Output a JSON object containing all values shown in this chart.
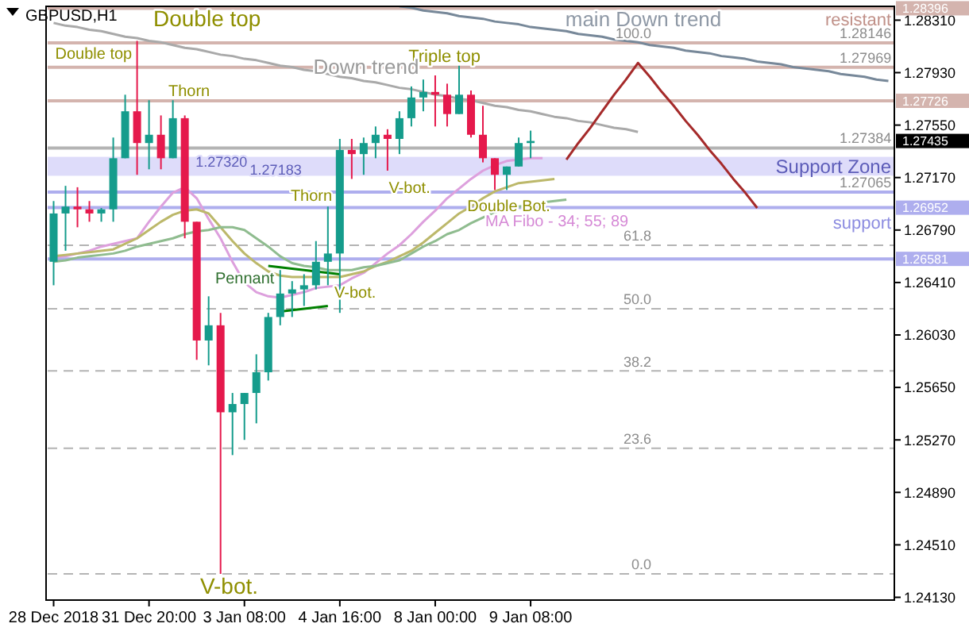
{
  "chart_data": {
    "type": "candlestick",
    "title": "GBPUSD,H1",
    "categories": [
      "28 Dec 2018",
      null,
      null,
      null,
      null,
      null,
      null,
      null,
      "31 Dec 20:00",
      null,
      null,
      null,
      null,
      null,
      null,
      null,
      "3 Jan 08:00",
      null,
      null,
      null,
      null,
      null,
      null,
      null,
      "4 Jan 16:00",
      null,
      null,
      null,
      null,
      null,
      null,
      null,
      "8 Jan 00:00",
      null,
      null,
      null,
      null,
      null,
      null,
      null,
      "9 Jan 08:00",
      null,
      null,
      null,
      null,
      null,
      null,
      null,
      null,
      null,
      null,
      null,
      null,
      null,
      null,
      null,
      null,
      null,
      null,
      null,
      null,
      null,
      null,
      null,
      null,
      null,
      null,
      null,
      null,
      null,
      null
    ],
    "ohlc": [
      [
        1.2656,
        1.27,
        1.2639,
        1.2691
      ],
      [
        1.2691,
        1.2711,
        1.2664,
        1.2696
      ],
      [
        1.2696,
        1.271,
        1.2681,
        1.2694
      ],
      [
        1.2694,
        1.27,
        1.2685,
        1.2691
      ],
      [
        1.2691,
        1.2695,
        1.2685,
        1.2694
      ],
      [
        1.2694,
        1.2746,
        1.2685,
        1.2731
      ],
      [
        1.2731,
        1.2777,
        1.2731,
        1.2765
      ],
      [
        1.2765,
        1.2816,
        1.2719,
        1.2742
      ],
      [
        1.2742,
        1.2773,
        1.2723,
        1.2748
      ],
      [
        1.2748,
        1.2762,
        1.2723,
        1.2731
      ],
      [
        1.2731,
        1.2773,
        1.2731,
        1.276
      ],
      [
        1.276,
        1.2762,
        1.2673,
        1.2685
      ],
      [
        1.2685,
        1.2685,
        1.2585,
        1.2599
      ],
      [
        1.2599,
        1.2631,
        1.2581,
        1.261
      ],
      [
        1.261,
        1.2619,
        1.243,
        1.2547
      ],
      [
        1.2547,
        1.2561,
        1.2516,
        1.2553
      ],
      [
        1.2553,
        1.2561,
        1.2527,
        1.2561
      ],
      [
        1.2561,
        1.2589,
        1.2539,
        1.2576
      ],
      [
        1.2576,
        1.2619,
        1.257,
        1.2616
      ],
      [
        1.2616,
        1.265,
        1.261,
        1.2633
      ],
      [
        1.2633,
        1.2642,
        1.2616,
        1.2636
      ],
      [
        1.2636,
        1.2647,
        1.2624,
        1.2639
      ],
      [
        1.2639,
        1.2671,
        1.2636,
        1.2656
      ],
      [
        1.2656,
        1.2696,
        1.2639,
        1.2662
      ],
      [
        1.2662,
        1.2745,
        1.2619,
        1.2737
      ],
      [
        1.2737,
        1.2745,
        1.2716,
        1.2734
      ],
      [
        1.2734,
        1.2746,
        1.2719,
        1.2742
      ],
      [
        1.2742,
        1.2754,
        1.2731,
        1.2748
      ],
      [
        1.2748,
        1.2752,
        1.2722,
        1.2745
      ],
      [
        1.2745,
        1.2765,
        1.2734,
        1.276
      ],
      [
        1.276,
        1.2783,
        1.2754,
        1.2775
      ],
      [
        1.2775,
        1.2788,
        1.2765,
        1.2779
      ],
      [
        1.2779,
        1.2791,
        1.2754,
        1.2777
      ],
      [
        1.2777,
        1.2785,
        1.2754,
        1.2763
      ],
      [
        1.2763,
        1.2798,
        1.2763,
        1.2777
      ],
      [
        1.2777,
        1.278,
        1.2746,
        1.2748
      ],
      [
        1.2748,
        1.2769,
        1.2728,
        1.2731
      ],
      [
        1.2731,
        1.2731,
        1.2708,
        1.2719
      ],
      [
        1.2719,
        1.2725,
        1.2708,
        1.2725
      ],
      [
        1.2725,
        1.2746,
        1.2725,
        1.2742
      ],
      [
        1.2742,
        1.2751,
        1.2731,
        1.27435
      ],
      null,
      null,
      null,
      null,
      null,
      null,
      null,
      null,
      null,
      null,
      null,
      null,
      null,
      null,
      null,
      null,
      null,
      null,
      null,
      null,
      null,
      null,
      null,
      null,
      null,
      null,
      null,
      null,
      null,
      null
    ],
    "colors": [
      "#159c8c",
      "#159c8c",
      "#e5194c",
      "#e5194c",
      "#159c8c",
      "#159c8c",
      "#159c8c",
      "#e5194c",
      "#159c8c",
      "#e5194c",
      "#159c8c",
      "#e5194c",
      "#e5194c",
      "#159c8c",
      "#e5194c",
      "#159c8c",
      "#159c8c",
      "#159c8c",
      "#159c8c",
      "#159c8c",
      "#159c8c",
      "#159c8c",
      "#159c8c",
      "#159c8c",
      "#159c8c",
      "#e5194c",
      "#159c8c",
      "#159c8c",
      "#e5194c",
      "#159c8c",
      "#159c8c",
      "#159c8c",
      "#e5194c",
      "#e5194c",
      "#159c8c",
      "#e5194c",
      "#e5194c",
      "#e5194c",
      "#159c8c",
      "#159c8c",
      "#159c8c",
      null,
      null,
      null,
      null,
      null,
      null,
      null,
      null,
      null,
      null,
      null,
      null,
      null,
      null,
      null,
      null,
      null,
      null,
      null,
      null,
      null,
      null,
      null,
      null,
      null,
      null,
      null,
      null,
      null,
      null
    ],
    "series": [
      {
        "type": "line",
        "color": "#dda0dd",
        "values": [
          1.2659,
          1.266,
          1.2662,
          1.2664,
          1.2667,
          1.2669,
          1.2671,
          1.2673,
          1.2685,
          1.2696,
          1.2706,
          1.271,
          1.2702,
          1.2687,
          1.2673,
          1.2656,
          1.2641,
          1.2634,
          1.2631,
          1.263,
          1.2632,
          1.2634,
          1.2637,
          1.2638,
          1.2639,
          1.2644,
          1.2648,
          1.2655,
          1.2662,
          1.2668,
          1.2676,
          1.2685,
          1.2693,
          1.2702,
          1.2709,
          1.2716,
          1.2722,
          1.2726,
          1.2729,
          1.273,
          1.2731,
          1.2731,
          null,
          null,
          null,
          null,
          null,
          null,
          null,
          null,
          null,
          null,
          null,
          null,
          null,
          null,
          null,
          null,
          null,
          null,
          null,
          null,
          null,
          null,
          null,
          null,
          null,
          null,
          null,
          null,
          null
        ]
      },
      {
        "type": "line",
        "color": "#bcb86a",
        "values": [
          1.266,
          1.2661,
          1.2662,
          1.2663,
          1.2664,
          1.2665,
          1.2669,
          1.2673,
          1.2679,
          1.2685,
          1.269,
          1.2693,
          1.2694,
          1.2691,
          1.2681,
          1.2671,
          1.2662,
          1.2655,
          1.2649,
          1.2646,
          1.2645,
          1.2645,
          1.2645,
          1.2645,
          1.2645,
          1.2647,
          1.2649,
          1.2653,
          1.2656,
          1.266,
          1.2664,
          1.267,
          1.2677,
          1.2684,
          1.2691,
          1.2696,
          1.2702,
          1.2707,
          1.271,
          1.2713,
          1.2714,
          1.2715,
          1.2716,
          null,
          null,
          null,
          null,
          null,
          null,
          null,
          null,
          null,
          null,
          null,
          null,
          null,
          null,
          null,
          null,
          null,
          null,
          null,
          null,
          null,
          null,
          null,
          null,
          null,
          null,
          null,
          null
        ]
      },
      {
        "type": "line",
        "color": "#8fbc8f",
        "values": [
          1.2656,
          1.2657,
          1.2659,
          1.266,
          1.2661,
          1.2662,
          1.2664,
          1.2667,
          1.2669,
          1.2671,
          1.2673,
          1.2676,
          1.2678,
          1.2679,
          1.2681,
          1.2681,
          1.2679,
          1.2673,
          1.2667,
          1.266,
          1.2655,
          1.2653,
          1.2652,
          1.265,
          1.265,
          1.265,
          1.2652,
          1.2653,
          1.2655,
          1.2657,
          1.2662,
          1.2667,
          1.2671,
          1.2676,
          1.2679,
          1.2684,
          1.2688,
          1.2692,
          1.2694,
          1.2696,
          1.2697,
          1.2699,
          1.27,
          1.2701,
          null,
          null,
          null,
          null,
          null,
          null,
          null,
          null,
          null,
          null,
          null,
          null,
          null,
          null,
          null,
          null,
          null,
          null,
          null,
          null,
          null,
          null,
          null,
          null,
          null,
          null,
          null
        ]
      },
      {
        "type": "line",
        "color": "#a9a9a9",
        "values": [
          1.2829,
          1.2827,
          1.2826,
          1.2824,
          1.2823,
          1.2821,
          1.2819,
          1.2818,
          1.2816,
          1.2815,
          1.2813,
          1.2811,
          1.281,
          1.2808,
          1.2806,
          1.2805,
          1.2803,
          1.2802,
          1.28,
          1.2798,
          1.2797,
          1.2795,
          1.2794,
          1.2792,
          1.279,
          1.2789,
          1.2787,
          1.2786,
          1.2784,
          1.2782,
          1.2781,
          1.2779,
          1.2777,
          1.2776,
          1.2774,
          1.2773,
          1.2771,
          1.2769,
          1.2768,
          1.2766,
          1.2765,
          1.2763,
          1.2761,
          1.276,
          1.2758,
          1.2757,
          1.2755,
          1.2753,
          1.2752,
          1.275,
          null,
          null,
          null,
          null,
          null,
          null,
          null,
          null,
          null,
          null,
          null,
          null,
          null,
          null,
          null,
          null,
          null,
          null,
          null,
          null,
          null
        ]
      },
      {
        "type": "line",
        "color": "#778899",
        "values": [
          null,
          null,
          null,
          null,
          null,
          null,
          null,
          null,
          null,
          null,
          null,
          null,
          null,
          null,
          null,
          null,
          null,
          null,
          null,
          null,
          null,
          null,
          null,
          null,
          null,
          null,
          null,
          null,
          null,
          1.2841,
          1.284,
          1.2838,
          1.2837,
          1.2836,
          1.2834,
          1.2833,
          1.2832,
          1.283,
          1.2829,
          1.2828,
          1.2826,
          1.2825,
          1.2824,
          1.2823,
          1.2821,
          1.282,
          1.2819,
          1.2817,
          1.2816,
          1.2815,
          1.2813,
          1.2812,
          1.2811,
          1.2809,
          1.2808,
          1.2807,
          1.2805,
          1.2804,
          1.2803,
          1.2801,
          1.28,
          1.2799,
          1.2797,
          1.2796,
          1.2795,
          1.2794,
          1.2792,
          1.2791,
          1.279,
          1.2788,
          1.2787
        ]
      },
      {
        "type": "line",
        "color": "#a52a2a",
        "values": [
          null,
          null,
          null,
          null,
          null,
          null,
          null,
          null,
          null,
          null,
          null,
          null,
          null,
          null,
          null,
          null,
          null,
          null,
          null,
          null,
          null,
          null,
          null,
          null,
          null,
          null,
          null,
          null,
          null,
          null,
          null,
          null,
          null,
          null,
          null,
          null,
          null,
          null,
          null,
          null,
          null,
          null,
          null,
          1.273,
          1.2742,
          1.2753,
          1.2765,
          1.2777,
          1.2788,
          1.28,
          1.279,
          1.2779,
          1.2769,
          1.2758,
          1.2748,
          1.2737,
          1.2727,
          1.2716,
          1.2706,
          1.2695,
          null,
          null,
          null,
          null,
          null,
          null,
          null,
          null,
          null,
          null,
          null
        ]
      },
      {
        "type": "line",
        "color": "#008000",
        "values": [
          null,
          null,
          null,
          null,
          null,
          null,
          null,
          null,
          null,
          null,
          null,
          null,
          null,
          null,
          null,
          null,
          null,
          null,
          1.2653,
          1.2652,
          1.2651,
          1.265,
          1.2649,
          1.2648,
          1.2647,
          null,
          null,
          null,
          null,
          null,
          null,
          null,
          null,
          null,
          null,
          null,
          null,
          null,
          null,
          null,
          null,
          null,
          null,
          null,
          null,
          null,
          null,
          null,
          null,
          null,
          null,
          null,
          null,
          null,
          null,
          null,
          null,
          null,
          null,
          null,
          null,
          null,
          null,
          null,
          null,
          null,
          null,
          null,
          null,
          null,
          null
        ]
      },
      {
        "type": "line",
        "color": "#008000",
        "values": [
          null,
          null,
          null,
          null,
          null,
          null,
          null,
          null,
          null,
          null,
          null,
          null,
          null,
          null,
          null,
          null,
          null,
          null,
          null,
          1.262,
          1.2621,
          1.2622,
          1.2623,
          1.2624,
          null,
          null,
          null,
          null,
          null,
          null,
          null,
          null,
          null,
          null,
          null,
          null,
          null,
          null,
          null,
          null,
          null,
          null,
          null,
          null,
          null,
          null,
          null,
          null,
          null,
          null,
          null,
          null,
          null,
          null,
          null,
          null,
          null,
          null,
          null,
          null,
          null,
          null,
          null,
          null,
          null,
          null,
          null,
          null,
          null,
          null,
          null
        ]
      }
    ],
    "ylim": [
      1.2411,
      1.2841
    ],
    "yticks": [
      {
        "value": 1.2831,
        "label": "1.28310"
      },
      {
        "value": 1.2793,
        "label": "1.27930"
      },
      {
        "value": 1.2755,
        "label": "1.27550"
      },
      {
        "value": 1.2717,
        "label": "1.27170"
      },
      {
        "value": 1.2679,
        "label": "1.26790"
      },
      {
        "value": 1.2641,
        "label": "1.26410"
      },
      {
        "value": 1.2603,
        "label": "1.26030"
      },
      {
        "value": 1.2565,
        "label": "1.25650"
      },
      {
        "value": 1.2527,
        "label": "1.25270"
      },
      {
        "value": 1.2489,
        "label": "1.24890"
      },
      {
        "value": 1.2451,
        "label": "1.24510"
      },
      {
        "value": 1.2413,
        "label": "1.24130"
      }
    ],
    "bands": [
      {
        "axis": "y",
        "from": 1.27183,
        "to": 1.2732,
        "label": "Support Zone",
        "color": "#dedcfa"
      }
    ],
    "ref_lines": [
      {
        "axis": "y",
        "value": 1.28396,
        "label": "1.28396",
        "color": "#d4b4ae",
        "line_style": "solid"
      },
      {
        "axis": "y",
        "value": 1.28146,
        "color": "#d4b4ae",
        "line_style": "solid"
      },
      {
        "axis": "y",
        "value": 1.27969,
        "color": "#d4b4ae",
        "line_style": "solid"
      },
      {
        "axis": "y",
        "value": 1.27726,
        "label": "1.27726",
        "color": "#d4b4ae",
        "line_style": "solid"
      },
      {
        "axis": "y",
        "value": 1.27384,
        "color": "#b4b4b4",
        "line_style": "solid"
      },
      {
        "axis": "y",
        "value": 1.27065,
        "color": "#aeaeee",
        "line_style": "solid"
      },
      {
        "axis": "y",
        "value": 1.26952,
        "label": "1.26952",
        "color": "#aeaeee",
        "line_style": "solid"
      },
      {
        "axis": "y",
        "value": 1.26581,
        "label": "1.26581",
        "color": "#aeaeee",
        "line_style": "solid"
      },
      {
        "axis": "y",
        "value": 1.2668,
        "color": "#b4b4b4",
        "line_style": "dashed"
      },
      {
        "axis": "y",
        "value": 1.2622,
        "color": "#b4b4b4",
        "line_style": "dashed"
      },
      {
        "axis": "y",
        "value": 1.2577,
        "color": "#b4b4b4",
        "line_style": "dashed"
      },
      {
        "axis": "y",
        "value": 1.2521,
        "color": "#b4b4b4",
        "line_style": "dashed"
      },
      {
        "axis": "y",
        "value": 1.243,
        "color": "#b4b4b4",
        "line_style": "dashed"
      }
    ],
    "annotations": [
      {
        "text": "Double top",
        "y": 1.2816
      },
      {
        "text": "Double top",
        "y": 1.2816
      },
      {
        "text": "Thorn",
        "y": 1.2773
      },
      "Thorn",
      {
        "text": "Pennant",
        "y": 1.2653
      },
      "V-bot.",
      "V-bot.",
      "V-bot.",
      "Triple top",
      {
        "text": "Double Bot.",
        "y": 1.2708
      },
      "Down trend",
      "main Down trend",
      "MA Fibo - 34; 55; 89",
      "resistant",
      "support",
      {
        "text": "1.27320",
        "y": 1.2732
      },
      {
        "text": "1.27183",
        "y": 1.27183
      },
      "1.28146",
      "1.27969",
      "1.27384",
      "1.27065",
      "100.0",
      "61.8",
      "50.0",
      "38.2",
      "23.6",
      "0.0",
      "1.27435"
    ]
  }
}
